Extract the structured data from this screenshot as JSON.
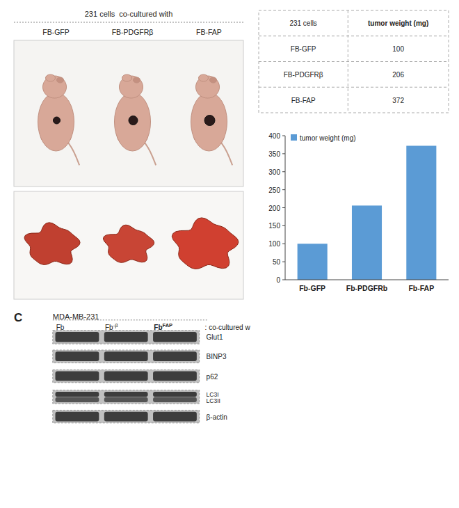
{
  "chart_data": [
    {
      "type": "illustration",
      "title": "231 cells  co-cultured with",
      "categories": [
        "FB-GFP",
        "FB-PDGFRβ",
        "FB-FAP"
      ],
      "colors": [
        "#c04030",
        "#c84535",
        "#d04030"
      ]
    },
    {
      "type": "table",
      "columns": [
        "231 cells",
        "tumor weight (mg)"
      ],
      "categories": [
        "FB-GFP",
        "FB-PDGFRβ",
        "FB-FAP"
      ],
      "values": [
        100,
        206,
        372
      ]
    },
    {
      "type": "bar",
      "categories": [
        "Fb-GFP",
        "Fb-PDGFRb",
        "Fb-FAP"
      ],
      "series": [
        {
          "name": "tumor weight (mg)",
          "color": "#5B9BD5",
          "values": [
            100,
            206,
            372
          ]
        }
      ],
      "ylim": [
        0,
        400
      ],
      "yticks": [
        0,
        50,
        100,
        150,
        200,
        250,
        300,
        350,
        400
      ],
      "grid": false,
      "legend": "upper left"
    },
    {
      "type": "blot",
      "title": "MDA-MB-231",
      "categories": [
        "Glut1",
        "BINP3",
        "p62",
        "LC3I\nLC3II",
        "β-actin"
      ],
      "annotations": [
        "C",
        "Fb",
        "Fb-β",
        "FbFAP",
        ": co-cultured w"
      ]
    }
  ]
}
